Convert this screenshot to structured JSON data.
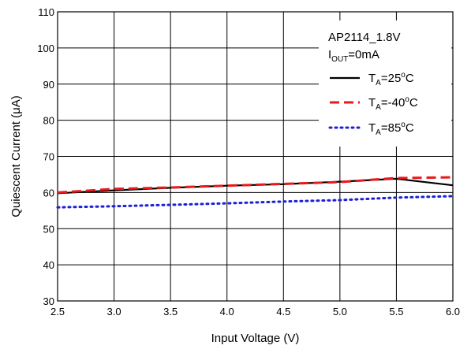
{
  "chart_data": {
    "type": "line",
    "title": "",
    "xlabel": "Input Voltage (V)",
    "ylabel": "Quiescent Current (μA)",
    "xlim": [
      2.5,
      6.0
    ],
    "ylim": [
      30,
      110
    ],
    "x_ticks": [
      "2.5",
      "3.0",
      "3.5",
      "4.0",
      "4.5",
      "5.0",
      "5.5",
      "6.0"
    ],
    "y_ticks": [
      "30",
      "40",
      "50",
      "60",
      "70",
      "80",
      "90",
      "100",
      "110"
    ],
    "grid": true,
    "legend_position": "top-right",
    "legend_header": {
      "line1": "AP2114_1.8V",
      "line2_main": "I",
      "line2_sub": "OUT",
      "line2_rest": "=0mA"
    },
    "series": [
      {
        "name": "T_A=25°C",
        "label_main": "T",
        "label_sub": "A",
        "label_rest": "=25",
        "label_sup": "o",
        "label_end": "C",
        "color": "#000000",
        "style": "solid",
        "x": [
          2.5,
          3.0,
          3.5,
          4.0,
          4.5,
          5.0,
          5.5,
          6.0
        ],
        "y": [
          59.8,
          60.6,
          61.3,
          61.9,
          62.3,
          63.0,
          63.8,
          62.0
        ]
      },
      {
        "name": "T_A=-40°C",
        "label_main": "T",
        "label_sub": "A",
        "label_rest": "=-40",
        "label_sup": "o",
        "label_end": "C",
        "color": "#e8191c",
        "style": "dashed",
        "x": [
          2.5,
          3.0,
          3.5,
          4.0,
          4.5,
          5.0,
          5.5,
          6.0
        ],
        "y": [
          60.0,
          61.0,
          61.4,
          61.9,
          62.4,
          62.9,
          64.0,
          64.2
        ]
      },
      {
        "name": "T_A=85°C",
        "label_main": "T",
        "label_sub": "A",
        "label_rest": "=85",
        "label_sup": "o",
        "label_end": "C",
        "color": "#1f1fd6",
        "style": "dotted",
        "x": [
          2.5,
          3.0,
          3.5,
          4.0,
          4.5,
          5.0,
          5.5,
          6.0
        ],
        "y": [
          55.9,
          56.2,
          56.6,
          57.0,
          57.5,
          57.9,
          58.6,
          59.0
        ]
      }
    ]
  }
}
